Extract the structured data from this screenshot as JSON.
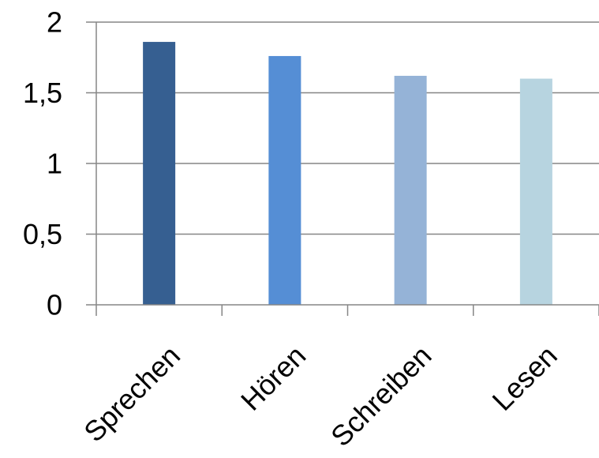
{
  "chart_data": {
    "type": "bar",
    "categories": [
      "Sprechen",
      "Hören",
      "Schreiben",
      "Lesen"
    ],
    "values": [
      1.86,
      1.76,
      1.62,
      1.6
    ],
    "bar_colors": [
      "#365f91",
      "#558ed5",
      "#95b3d7",
      "#b7d4e0"
    ],
    "ylim": [
      0,
      2
    ],
    "yticks": [
      0,
      0.5,
      1,
      1.5,
      2
    ],
    "ytick_labels": [
      "0",
      "0,5",
      "1",
      "1,5",
      "2"
    ],
    "grid": true,
    "legend": false,
    "gridline_color": "#868686",
    "axis_color": "#868686"
  }
}
